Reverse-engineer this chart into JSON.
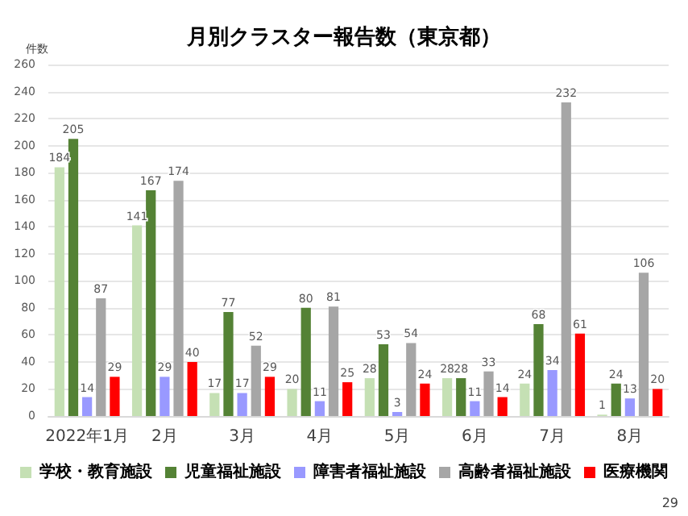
{
  "chart_data": {
    "type": "bar",
    "title": "月別クラスター報告数（東京都）",
    "ylabel": "件数",
    "categories": [
      "2022年1月",
      "2月",
      "3月",
      "4月",
      "5月",
      "6月",
      "7月",
      "8月"
    ],
    "series": [
      {
        "name": "学校・教育施設",
        "color": "#c5e0b4",
        "values": [
          184,
          141,
          17,
          20,
          28,
          28,
          24,
          1
        ]
      },
      {
        "name": "児童福祉施設",
        "color": "#548235",
        "values": [
          205,
          167,
          77,
          80,
          53,
          28,
          68,
          24
        ]
      },
      {
        "name": "障害者福祉施設",
        "color": "#9999ff",
        "values": [
          14,
          29,
          17,
          11,
          3,
          11,
          34,
          13
        ]
      },
      {
        "name": "高齢者福祉施設",
        "color": "#a6a6a6",
        "values": [
          87,
          174,
          52,
          81,
          54,
          33,
          232,
          106
        ]
      },
      {
        "name": "医療機関",
        "color": "#ff0000",
        "values": [
          29,
          40,
          29,
          25,
          24,
          14,
          61,
          20
        ]
      }
    ],
    "ylim": [
      0,
      260
    ],
    "yticks": [
      0,
      20,
      40,
      60,
      80,
      100,
      120,
      140,
      160,
      180,
      200,
      220,
      240,
      260
    ],
    "grid": "y",
    "legend": "bottom",
    "data_labels": true,
    "annotations": [
      "29"
    ]
  }
}
